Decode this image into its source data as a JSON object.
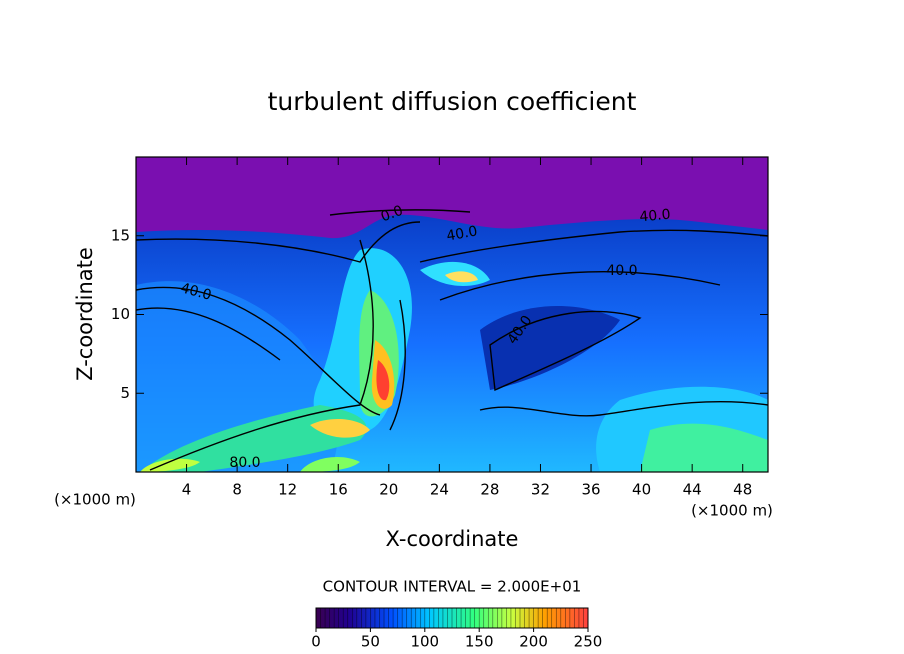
{
  "chart_data": {
    "type": "contour",
    "title": "turbulent diffusion coefficient",
    "x_label": "X-coordinate",
    "y_label": "Z-coordinate",
    "x_unit": "(×1000 m)",
    "x_unit_right": "(×1000 m)",
    "xlim": [
      0,
      50
    ],
    "ylim": [
      0,
      20
    ],
    "xticks": [
      4,
      8,
      12,
      16,
      20,
      24,
      28,
      32,
      36,
      40,
      44,
      48
    ],
    "yticks": [
      5,
      10,
      15
    ],
    "contour_interval": "CONTOUR INTERVAL = 2.000E+01",
    "contour_labels": [
      "40.0",
      "40.0",
      "40.0",
      "40.0",
      "40.0",
      "80.0",
      "0.0"
    ],
    "colorbar": {
      "lim": [
        0,
        250
      ],
      "ticks": [
        0,
        50,
        100,
        150,
        200,
        250
      ]
    }
  }
}
